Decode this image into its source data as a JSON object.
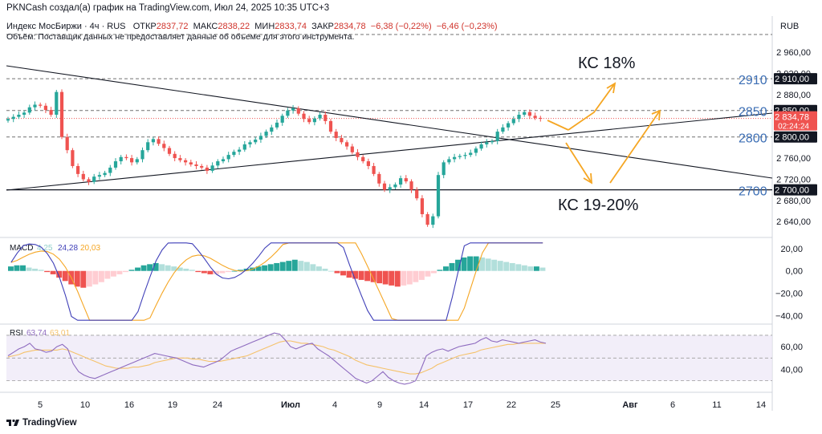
{
  "header": {
    "attribution": "PKNCash создал(а) график на TradingView.com, Июл 24, 2025 10:35 UTC+3",
    "symbol": "Индекс МосБиржи · 4ч · RUS",
    "open_label": "ОТКР",
    "open_value": "2837,72",
    "high_label": "МАКС",
    "high_value": "2838,22",
    "low_label": "МИН",
    "low_value": "2833,74",
    "close_label": "ЗАКР",
    "close_value": "2834,78",
    "change": "−6,38 (−0,22%)",
    "change2": "−6,46 (−0,23%)",
    "volume_note": "Объём: Поставщик данных не предоставляет данные об объеме для этого инструмента."
  },
  "currency": "RUB",
  "branding": "TradingView",
  "colors": {
    "up": "#26a69a",
    "down": "#ef5350",
    "macd_line": "#3f3fb8",
    "signal_line": "#f5a623",
    "rsi_line": "#8e6bbf",
    "rsi_ma": "#f5c26b",
    "level_blue": "#3d6fb5"
  },
  "chart_data": [
    {
      "type": "line",
      "subtype": "candlestick",
      "price_axis": {
        "ticks": [
          "2 960,00",
          "2 920,00",
          "2 880,00",
          "2 840,00",
          "2 800,00",
          "2 760,00",
          "2 720,00",
          "2 680,00",
          "2 640,00"
        ],
        "range": [
          2610,
          2980
        ]
      },
      "time_axis": [
        "5",
        "10",
        "16",
        "19",
        "24",
        "Июл",
        "4",
        "9",
        "14",
        "17",
        "22",
        "25",
        "Авг",
        "6",
        "11",
        "14"
      ],
      "labels": {
        "current_price": "2 834,78",
        "countdown": "02:24:24"
      },
      "price_tags": [
        "2 910,00",
        "2 850,00",
        "2 800,00",
        "2 700,00"
      ],
      "level_numbers": [
        "2910",
        "2850",
        "2800",
        "2700"
      ],
      "annotations": [
        "КС 18%",
        "КС 19-20%"
      ],
      "close": [
        2834,
        2838,
        2842,
        2846,
        2856,
        2861,
        2859,
        2851,
        2842,
        2885,
        2800,
        2775,
        2745,
        2730,
        2720,
        2715,
        2725,
        2728,
        2732,
        2742,
        2754,
        2762,
        2760,
        2752,
        2758,
        2775,
        2790,
        2796,
        2787,
        2779,
        2768,
        2760,
        2756,
        2752,
        2748,
        2745,
        2742,
        2736,
        2746,
        2754,
        2758,
        2766,
        2772,
        2776,
        2786,
        2790,
        2795,
        2802,
        2810,
        2818,
        2827,
        2840,
        2850,
        2854,
        2844,
        2834,
        2828,
        2835,
        2842,
        2830,
        2810,
        2798,
        2790,
        2782,
        2771,
        2762,
        2754,
        2745,
        2730,
        2712,
        2700,
        2705,
        2710,
        2722,
        2716,
        2700,
        2684,
        2654,
        2634,
        2650,
        2728,
        2752,
        2758,
        2762,
        2764,
        2766,
        2770,
        2778,
        2786,
        2790,
        2792,
        2810,
        2818,
        2826,
        2834,
        2842,
        2847,
        2840,
        2836,
        2835
      ],
      "source_period": {
        "period": "4h",
        "start": "Jun 2025",
        "end": "Jul 24 2025"
      }
    },
    {
      "type": "bar",
      "name": "MACD",
      "values_text": [
        "4,25",
        "24,28",
        "20,03"
      ],
      "axis_ticks": [
        "20,00",
        "0,00",
        "−20,00",
        "−40,00"
      ],
      "range": [
        -46,
        27
      ],
      "histogram": [
        4,
        5,
        5,
        3,
        2,
        1,
        -1,
        -3,
        -6,
        -9,
        -12,
        -14,
        -15,
        -14,
        -12,
        -10,
        -7,
        -5,
        -3,
        -1,
        1,
        3,
        5,
        6,
        7,
        6,
        5,
        4,
        3,
        2,
        1,
        -1,
        -2,
        -3,
        -3,
        -2,
        -1,
        0,
        1,
        2,
        3,
        4,
        5,
        6,
        7,
        8,
        9,
        10,
        9,
        8,
        6,
        4,
        2,
        0,
        -2,
        -4,
        -6,
        -7,
        -8,
        -9,
        -10,
        -11,
        -12,
        -13,
        -14,
        -13,
        -12,
        -10,
        -8,
        -5,
        -2,
        1,
        4,
        7,
        10,
        12,
        13,
        13,
        12,
        11,
        10,
        9,
        8,
        7,
        6,
        5,
        4,
        4,
        3
      ]
    },
    {
      "type": "line",
      "name": "RSI",
      "values_text": [
        "63,74",
        "63,01"
      ],
      "axis_ticks": [
        "60,00",
        "40,00"
      ],
      "range": [
        22,
        77
      ],
      "rsi": [
        52,
        55,
        58,
        60,
        63,
        58,
        57,
        55,
        56,
        60,
        62,
        58,
        45,
        38,
        35,
        33,
        32,
        34,
        36,
        38,
        40,
        42,
        44,
        46,
        48,
        50,
        52,
        54,
        53,
        52,
        51,
        50,
        48,
        46,
        44,
        43,
        42,
        44,
        46,
        48,
        52,
        56,
        58,
        60,
        62,
        64,
        66,
        68,
        70,
        72,
        71,
        66,
        60,
        58,
        60,
        62,
        63,
        58,
        55,
        52,
        48,
        44,
        40,
        36,
        32,
        30,
        28,
        30,
        34,
        38,
        33,
        30,
        28,
        27,
        28,
        30,
        40,
        52,
        55,
        57,
        58,
        56,
        58,
        60,
        61,
        62,
        63,
        66,
        68,
        65,
        64,
        66,
        65,
        64,
        63,
        64,
        65,
        66,
        64,
        63
      ],
      "rsi_ma": [
        51,
        52,
        53,
        55,
        56,
        57,
        57,
        57,
        57,
        57,
        58,
        57,
        55,
        53,
        51,
        49,
        47,
        45,
        43,
        42,
        41,
        41,
        41,
        42,
        42,
        43,
        44,
        46,
        47,
        48,
        49,
        50,
        50,
        50,
        49,
        49,
        48,
        47,
        47,
        47,
        48,
        49,
        50,
        51,
        52,
        54,
        56,
        58,
        60,
        62,
        64,
        65,
        65,
        64,
        63,
        63,
        62,
        61,
        60,
        58,
        57,
        55,
        53,
        51,
        48,
        46,
        44,
        43,
        42,
        41,
        40,
        39,
        38,
        37,
        36,
        36,
        37,
        39,
        41,
        44,
        46,
        48,
        50,
        52,
        53,
        54,
        55,
        57,
        58,
        59,
        60,
        61,
        62,
        62,
        63,
        63,
        63,
        63,
        63,
        63
      ]
    }
  ]
}
